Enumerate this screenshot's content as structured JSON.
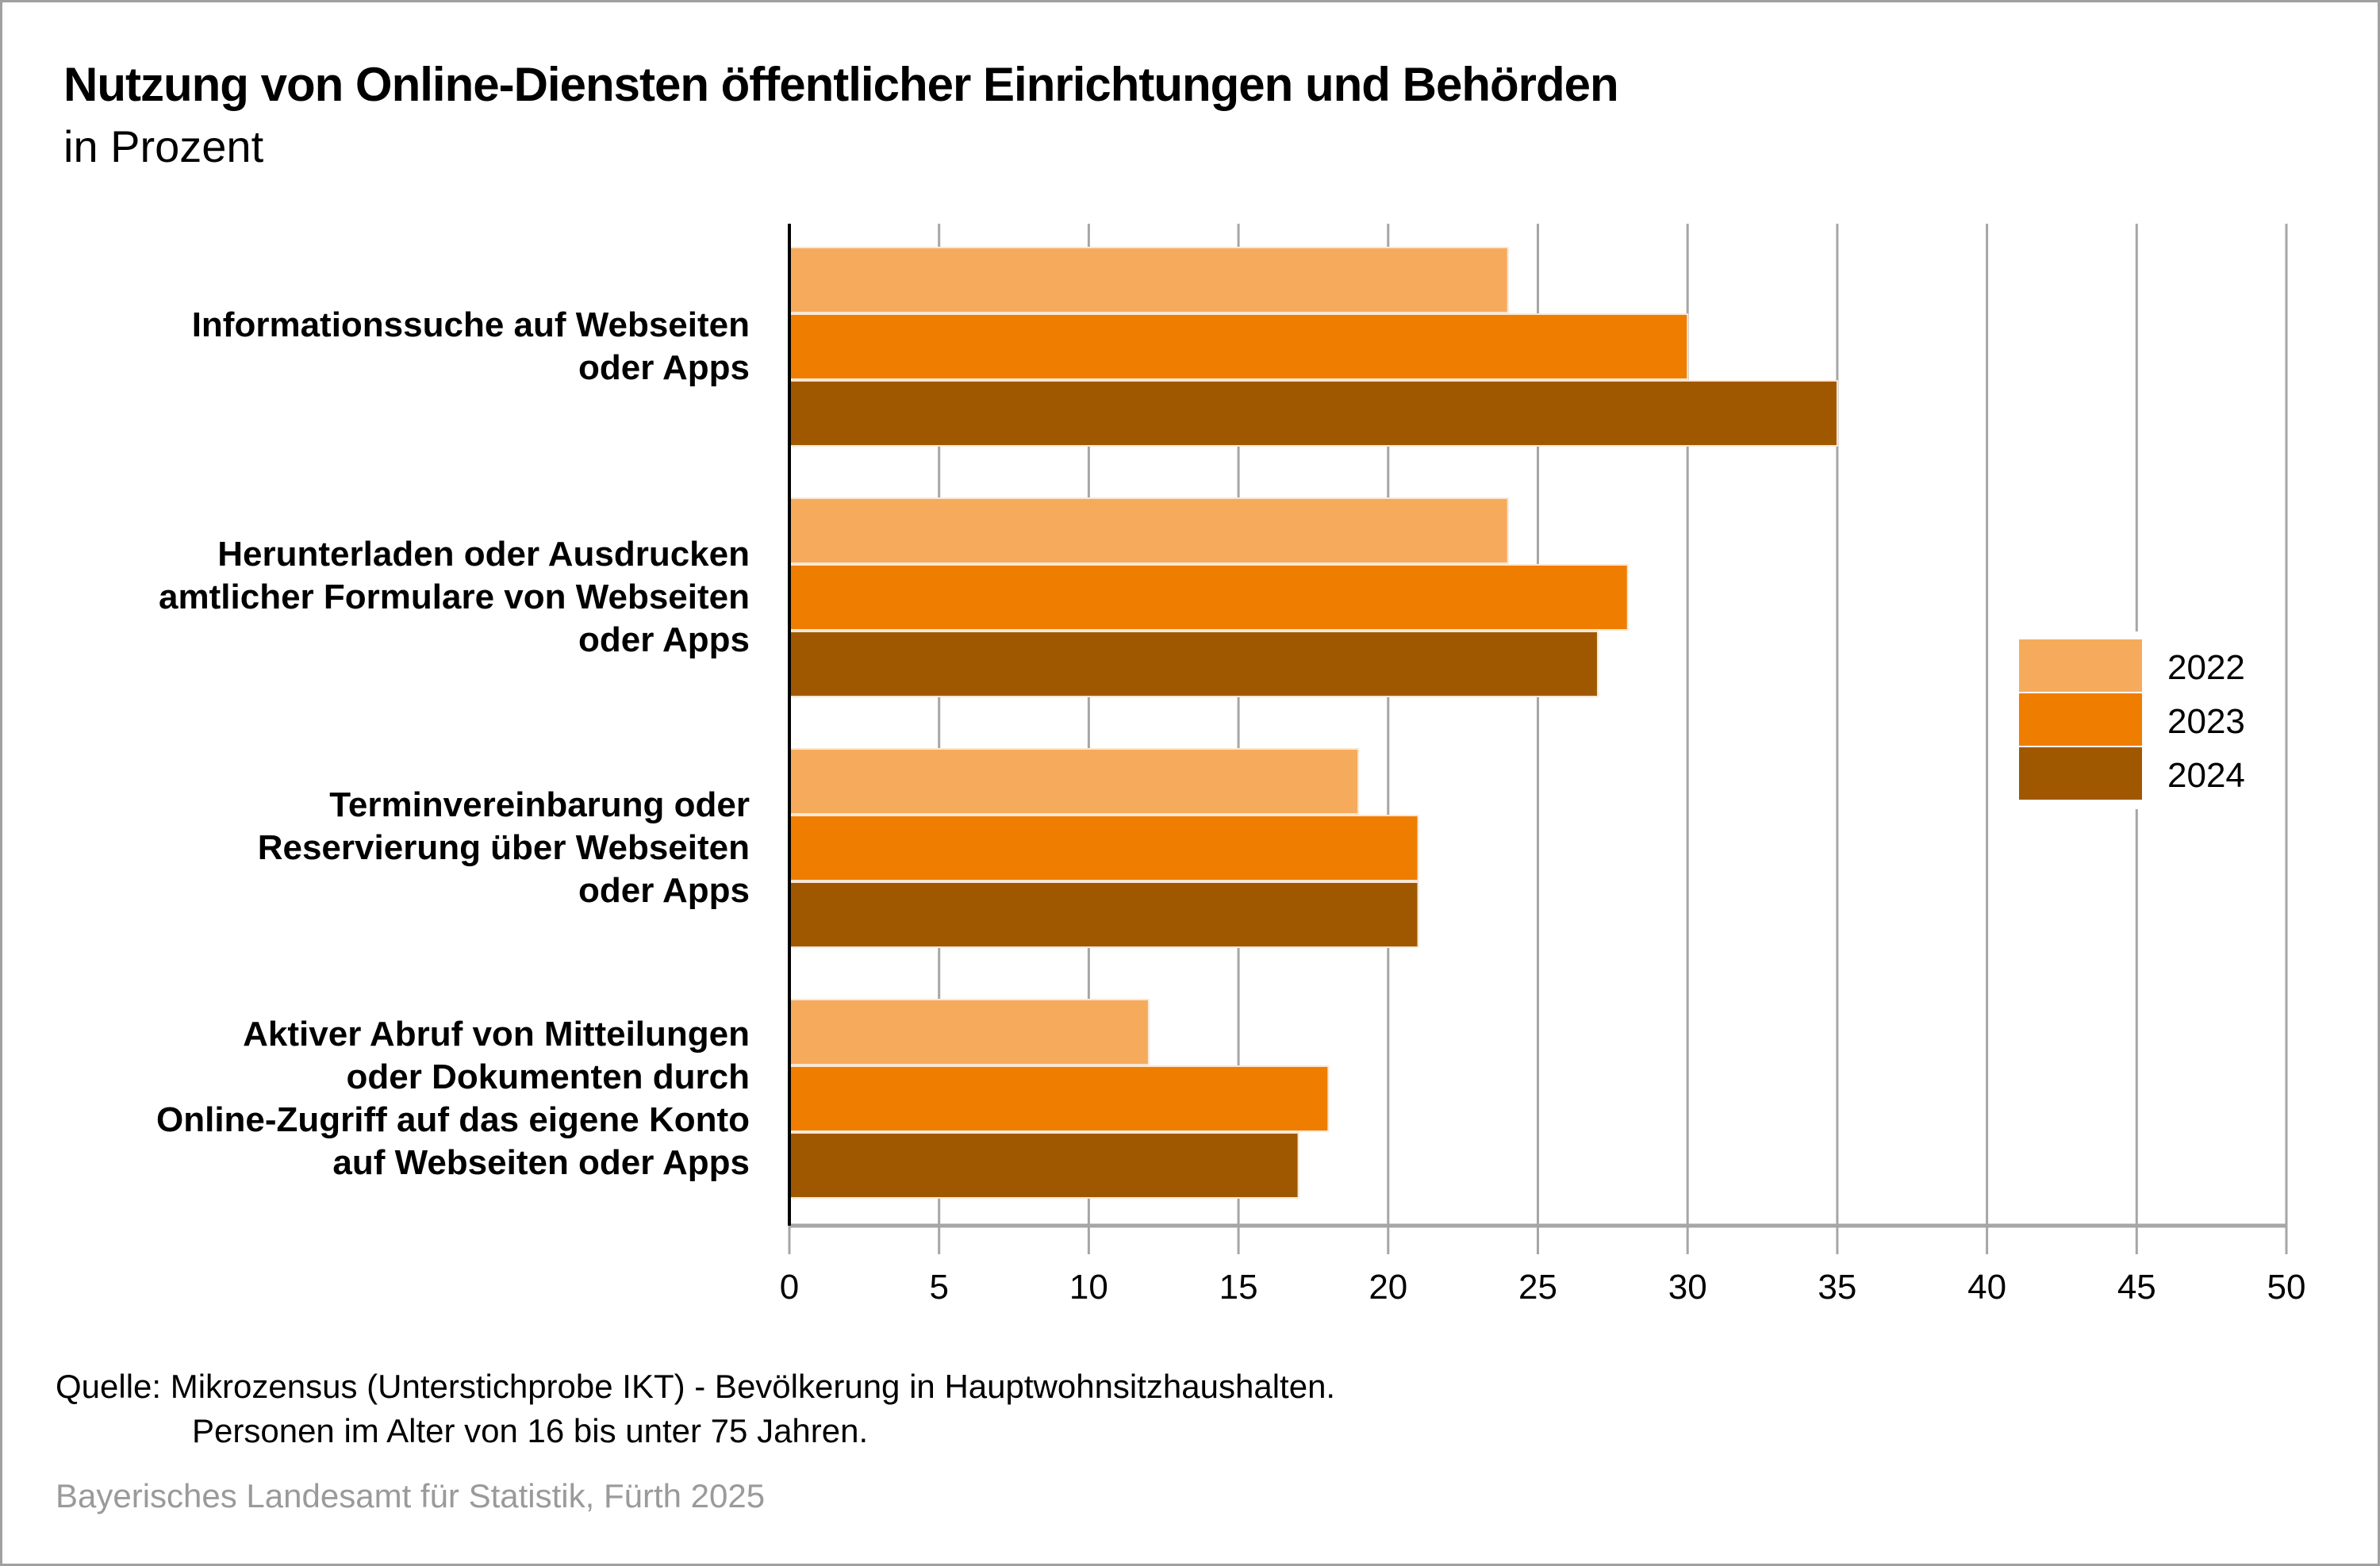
{
  "chart_data": {
    "type": "bar",
    "orientation": "horizontal",
    "title": "Nutzung von Online-Diensten öffentlicher Einrichtungen und Behörden",
    "subtitle": "in Prozent",
    "categories": [
      "Informationssuche auf Webseiten oder Apps",
      "Herunterladen oder Ausdrucken amtlicher Formulare von Webseiten oder Apps",
      "Terminvereinbarung oder Reservierung über Webseiten oder Apps",
      "Aktiver Abruf von Mitteilungen oder Dokumenten durch Online-Zugriff auf das eigene Konto auf Webseiten oder Apps"
    ],
    "category_lines": [
      [
        "Informationssuche auf Webseiten",
        "oder Apps"
      ],
      [
        "Herunterladen oder Ausdrucken",
        "amtlicher Formulare von Webseiten",
        "oder Apps"
      ],
      [
        "Terminvereinbarung oder",
        "Reservierung über Webseiten",
        "oder Apps"
      ],
      [
        "Aktiver Abruf von Mitteilungen",
        "oder Dokumenten durch",
        "Online-Zugriff auf das eigene Konto",
        "auf Webseiten oder Apps"
      ]
    ],
    "series": [
      {
        "name": "2022",
        "color": "#f6ab5c",
        "values": [
          24,
          24,
          19,
          12
        ]
      },
      {
        "name": "2023",
        "color": "#ef7d00",
        "values": [
          30,
          28,
          21,
          18
        ]
      },
      {
        "name": "2024",
        "color": "#a05800",
        "values": [
          35,
          27,
          21,
          17
        ]
      }
    ],
    "xlabel": "",
    "ylabel": "",
    "xlim": [
      0,
      50
    ],
    "xticks": [
      0,
      5,
      10,
      15,
      20,
      25,
      30,
      35,
      40,
      45,
      50
    ],
    "grid": true,
    "legend_position": "right"
  },
  "footer": {
    "source_line1": "Quelle: Mikrozensus (Unterstichprobe IKT)  - Bevölkerung in Hauptwohnsitzhaushalten.",
    "source_line2": "Personen im Alter von 16 bis unter 75 Jahren.",
    "credit": "Bayerisches Landesamt für Statistik, Fürth 2025"
  }
}
